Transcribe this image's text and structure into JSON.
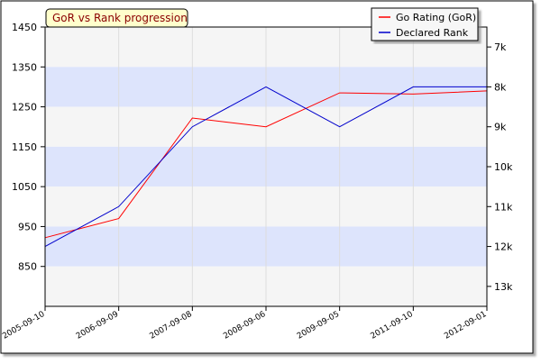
{
  "chart_data": {
    "type": "line",
    "title": "GoR vs Rank progression",
    "categories": [
      "2005-09-10",
      "2006-09-09",
      "2007-09-08",
      "2008-09-06",
      "2009-09-05",
      "2011-09-10",
      "2012-09-01"
    ],
    "left_axis": {
      "ylim": [
        750,
        1450
      ],
      "ticks": [
        850,
        950,
        1050,
        1150,
        1250,
        1350,
        1450
      ]
    },
    "right_axis": {
      "ticks": [
        "7k",
        "8k",
        "9k",
        "10k",
        "11k",
        "12k",
        "13k"
      ],
      "tick_values": [
        1400,
        1300,
        1200,
        1100,
        1000,
        900,
        800
      ]
    },
    "series": [
      {
        "name": "Go Rating (GoR)",
        "color": "#ff0000",
        "values": [
          922,
          970,
          1222,
          1200,
          1285,
          1282,
          1290
        ]
      },
      {
        "name": "Declared Rank",
        "color": "#0000cc",
        "values": [
          900,
          1000,
          1200,
          1300,
          1200,
          1300,
          1300
        ]
      }
    ],
    "legend": "top-right",
    "grid": true,
    "band_colors": [
      "#f5f5f5",
      "#dde4fc"
    ],
    "border_color": "#000000"
  }
}
